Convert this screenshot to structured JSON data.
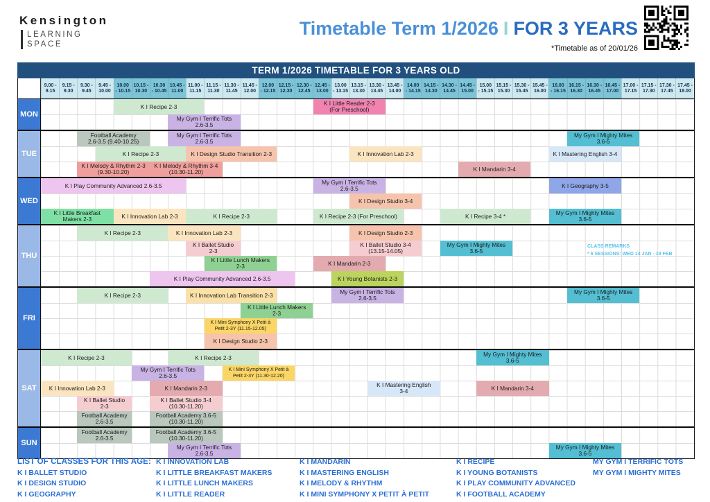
{
  "logo": {
    "line1": "Kensington",
    "line2": "LEARNING",
    "line3": "SPACE"
  },
  "header": {
    "title_main": "Timetable Term 1/2026",
    "title_sep": "I",
    "title_right": "FOR 3 YEARS",
    "subtitle": "*Timetable as of 20/01/26"
  },
  "banner": {
    "text": "TERM 1/2026 TIMETABLE FOR 3 YEARS OLD"
  },
  "icons": {
    "qr_code": "qr-code"
  },
  "colors": {
    "banner_bg": "#21507e",
    "day_medium": "#3c79d2",
    "day_light": "#9bb9e6",
    "time_light": "#cee8f0",
    "time_dark": "#7cc4d6",
    "remark_text": "#58c4ef",
    "footer_text": "#2b6fd4",
    "title_blue": "#4a90d8",
    "title_dark_blue": "#2a6cc0",
    "classes": {
      "recipe": "#cfe9d0",
      "terrific_tots": "#c9b2e4",
      "little_reader": "#f183b1",
      "football": "#b9c7bd",
      "melody": "#ef9f9c",
      "design_studio": "#f6c4ad",
      "innovation_lab": "#fbe5c0",
      "innovation_transition": "#fbe1a8",
      "mastering_english": "#d6e7f8",
      "mighty_mites": "#54bed2",
      "mandarin": "#e3abaf",
      "play_community": "#eec5ee",
      "breakfast_makers": "#7fe0a5",
      "lunch_makers": "#8fd193",
      "ballet": "#f5cdd0",
      "young_botanists": "#bcd45e",
      "mini_symphony": "#fbd666",
      "geography": "#8fa6e9"
    }
  },
  "time_columns": [
    [
      "9.00 -",
      "9.15"
    ],
    [
      "9.15 -",
      "9.30"
    ],
    [
      "9.30 -",
      "9.45"
    ],
    [
      "9.45 -",
      "10.00"
    ],
    [
      "10.00",
      "- 10.15"
    ],
    [
      "10.15 -",
      "10.30"
    ],
    [
      "10.30",
      "- 10.45"
    ],
    [
      "10.45 -",
      "11.00"
    ],
    [
      "11.00 -",
      "11.15"
    ],
    [
      "11.15 -",
      "11.30"
    ],
    [
      "11.30 -",
      "11.45"
    ],
    [
      "11.45 -",
      "12.00"
    ],
    [
      "12.00",
      "- 12.15"
    ],
    [
      "12.15 -",
      "12.30"
    ],
    [
      "12.30 -",
      "12.45"
    ],
    [
      "12.45 -",
      "13.00"
    ],
    [
      "13.00",
      "- 13.15"
    ],
    [
      "13.15 -",
      "13.30"
    ],
    [
      "13.30 -",
      "13.45"
    ],
    [
      "13.45 -",
      "14.00"
    ],
    [
      "14.00",
      "- 14.15"
    ],
    [
      "14.15 -",
      "14.30"
    ],
    [
      "14.30 -",
      "14.45"
    ],
    [
      "14.45 -",
      "15.00"
    ],
    [
      "15.00",
      "- 15.15"
    ],
    [
      "15.15 -",
      "15.30"
    ],
    [
      "15.30 -",
      "15.45"
    ],
    [
      "15.45 -",
      "16.00"
    ],
    [
      "16.00",
      "- 16.15"
    ],
    [
      "16.15 -",
      "16.30"
    ],
    [
      "16.30 -",
      "16.45"
    ],
    [
      "16.45 -",
      "17.00"
    ],
    [
      "17.00 -",
      "17.15"
    ],
    [
      "17.15 -",
      "17.30"
    ],
    [
      "17.30 -",
      "17.45"
    ],
    [
      "17.45 -",
      "18.00"
    ]
  ],
  "days": [
    {
      "label": "MON",
      "shade": "medium",
      "subrows": 2,
      "blocks": [
        {
          "row": 0,
          "col": 4,
          "span": 5,
          "color": "recipe",
          "lines": [
            "K I Recipe 2-3"
          ]
        },
        {
          "row": 0,
          "col": 15,
          "span": 4,
          "color": "little_reader",
          "lines": [
            "K I Little Reader 2-3",
            "(For Preschool)"
          ]
        },
        {
          "row": 1,
          "col": 7,
          "span": 4,
          "color": "terrific_tots",
          "lines": [
            "My Gym I Terrific Tots",
            "2.6-3.5"
          ]
        }
      ]
    },
    {
      "label": "TUE",
      "shade": "light",
      "subrows": 3,
      "blocks": [
        {
          "row": 0,
          "col": 2,
          "span": 4,
          "color": "football",
          "lines": [
            "Football Academy",
            "2.6-3.5 (9.40-10.25)"
          ]
        },
        {
          "row": 0,
          "col": 7,
          "span": 4,
          "color": "terrific_tots",
          "lines": [
            "My Gym I Terrific Tots",
            "2.6-3.5"
          ]
        },
        {
          "row": 0,
          "col": 29,
          "span": 4,
          "color": "mighty_mites",
          "lines": [
            "My Gym I Mighty Mites",
            "3.6-5"
          ]
        },
        {
          "row": 1,
          "col": 3,
          "span": 5,
          "color": "recipe",
          "lines": [
            "K I Recipe 2-3"
          ]
        },
        {
          "row": 1,
          "col": 8,
          "span": 5,
          "color": "design_studio",
          "lines": [
            "K I Design Studio Transition 2-3"
          ]
        },
        {
          "row": 1,
          "col": 17,
          "span": 4,
          "color": "innovation_lab",
          "lines": [
            "K I Innovation Lab 2-3"
          ]
        },
        {
          "row": 1,
          "col": 28,
          "span": 4,
          "color": "mastering_english",
          "lines": [
            "K I Mastering English  3-4"
          ]
        },
        {
          "row": 2,
          "col": 2,
          "span": 4,
          "color": "melody",
          "lines": [
            "K I Melody & Rhythm 2-3",
            "(9.30-10.20)"
          ]
        },
        {
          "row": 2,
          "col": 6,
          "span": 4,
          "color": "melody",
          "lines": [
            "K I Melody & Rhythm 3-4",
            "(10.30-11.20)"
          ]
        },
        {
          "row": 2,
          "col": 23,
          "span": 4,
          "color": "mandarin",
          "lines": [
            "K I Mandarin 3-4"
          ]
        }
      ]
    },
    {
      "label": "WED",
      "shade": "medium",
      "subrows": 3,
      "blocks": [
        {
          "row": 0,
          "col": 0,
          "span": 8,
          "color": "play_community",
          "lines": [
            "K I Play Community Advanced 2.6-3.5"
          ]
        },
        {
          "row": 0,
          "col": 15,
          "span": 4,
          "color": "terrific_tots",
          "lines": [
            "My Gym I Terrific Tots",
            "2.6-3.5"
          ]
        },
        {
          "row": 0,
          "col": 28,
          "span": 4,
          "color": "geography",
          "lines": [
            "K I Geography 3-5"
          ]
        },
        {
          "row": 1,
          "col": 17,
          "span": 4,
          "color": "design_studio",
          "lines": [
            "K I Design Studio 3-4"
          ]
        },
        {
          "row": 2,
          "col": 0,
          "span": 4,
          "color": "breakfast_makers",
          "lines": [
            "K I Little Breakfast",
            "Makers 2-3"
          ]
        },
        {
          "row": 2,
          "col": 4,
          "span": 4,
          "color": "innovation_lab",
          "lines": [
            "K I Innovation Lab 2-3"
          ]
        },
        {
          "row": 2,
          "col": 8,
          "span": 5,
          "color": "recipe",
          "lines": [
            "K I Recipe 2-3"
          ]
        },
        {
          "row": 2,
          "col": 15,
          "span": 5,
          "color": "recipe",
          "lines": [
            "K I Recipe 2-3 (For Preschool)"
          ]
        },
        {
          "row": 2,
          "col": 22,
          "span": 5,
          "color": "recipe",
          "lines": [
            "K I Recipe 3-4 *"
          ]
        },
        {
          "row": 2,
          "col": 28,
          "span": 4,
          "color": "mighty_mites",
          "lines": [
            "My Gym I Mighty Mites",
            "3.6-5"
          ]
        }
      ]
    },
    {
      "label": "THU",
      "shade": "light",
      "subrows": 4,
      "remark": {
        "col": 30,
        "row": 1,
        "lines": [
          "CLASS  REMARKS",
          "* 6 SESSIONS: WED 14 JAN - 18 FEB"
        ]
      },
      "blocks": [
        {
          "row": 0,
          "col": 2,
          "span": 5,
          "color": "recipe",
          "lines": [
            "K I Recipe 2-3"
          ]
        },
        {
          "row": 0,
          "col": 7,
          "span": 4,
          "color": "innovation_lab",
          "lines": [
            "K I Innovation Lab 2-3"
          ]
        },
        {
          "row": 0,
          "col": 17,
          "span": 4,
          "color": "design_studio",
          "lines": [
            "K I Design Studio 2-3"
          ]
        },
        {
          "row": 1,
          "col": 8,
          "span": 3,
          "color": "ballet",
          "lines": [
            "K I Ballet Studio",
            "2-3"
          ]
        },
        {
          "row": 1,
          "col": 17,
          "span": 4,
          "color": "ballet",
          "lines": [
            "K I Ballet Studio 3-4",
            "(13.15-14.05)"
          ]
        },
        {
          "row": 1,
          "col": 22,
          "span": 4,
          "color": "mighty_mites",
          "lines": [
            "My Gym I Mighty Mites",
            "3.6-5"
          ]
        },
        {
          "row": 2,
          "col": 9,
          "span": 4,
          "color": "lunch_makers",
          "lines": [
            "K I Little Lunch Makers",
            "2-3"
          ]
        },
        {
          "row": 2,
          "col": 15,
          "span": 4,
          "color": "mandarin",
          "lines": [
            "K I Mandarin 2-3"
          ]
        },
        {
          "row": 3,
          "col": 6,
          "span": 8,
          "color": "play_community",
          "lines": [
            "K I Play Community Advanced 2.6-3.5"
          ]
        },
        {
          "row": 3,
          "col": 16,
          "span": 4,
          "color": "young_botanists",
          "lines": [
            "K I Young Botanists 2-3"
          ]
        }
      ]
    },
    {
      "label": "FRI",
      "shade": "medium",
      "subrows": 4,
      "blocks": [
        {
          "row": 0,
          "col": 2,
          "span": 5,
          "color": "recipe",
          "lines": [
            "K I Recipe 2-3"
          ]
        },
        {
          "row": 0,
          "col": 8,
          "span": 5,
          "color": "innovation_transition",
          "lines": [
            "K I Innovation Lab Transition 2-3"
          ]
        },
        {
          "row": 0,
          "col": 16,
          "span": 4,
          "color": "terrific_tots",
          "lines": [
            "My Gym I Terrific Tots",
            "2.6-3.5"
          ]
        },
        {
          "row": 0,
          "col": 29,
          "span": 4,
          "color": "mighty_mites",
          "lines": [
            "My Gym I Mighty Mites",
            "3.6-5"
          ]
        },
        {
          "row": 1,
          "col": 11,
          "span": 4,
          "color": "lunch_makers",
          "lines": [
            "K I Little Lunch Makers",
            "2-3"
          ]
        },
        {
          "row": 2,
          "col": 9,
          "span": 4,
          "color": "mini_symphony",
          "lines": [
            "K I Mini Symphony X Petit à",
            "Petit  2-3Y (11.15-12.05)"
          ]
        },
        {
          "row": 3,
          "col": 9,
          "span": 4,
          "color": "design_studio",
          "lines": [
            "K I Design Studio 2-3"
          ]
        }
      ]
    },
    {
      "label": "SAT",
      "shade": "light",
      "subrows": 5,
      "blocks": [
        {
          "row": 0,
          "col": 0,
          "span": 5,
          "color": "recipe",
          "lines": [
            "K I Recipe 2-3"
          ]
        },
        {
          "row": 0,
          "col": 7,
          "span": 5,
          "color": "recipe",
          "lines": [
            "K I Recipe 2-3"
          ]
        },
        {
          "row": 0,
          "col": 24,
          "span": 4,
          "color": "mighty_mites",
          "lines": [
            "My Gym I Mighty Mites",
            "3.6-5"
          ]
        },
        {
          "row": 1,
          "col": 5,
          "span": 4,
          "color": "terrific_tots",
          "lines": [
            "My Gym I Terrific Tots",
            "2.6-3.5"
          ]
        },
        {
          "row": 1,
          "col": 10,
          "span": 4,
          "color": "mini_symphony",
          "lines": [
            "K I Mini Symphony X Petit à",
            "Petit 2-3Y (11.30-12.20)"
          ]
        },
        {
          "row": 2,
          "col": 0,
          "span": 4,
          "color": "innovation_lab",
          "lines": [
            "K I Innovation Lab 2-3"
          ]
        },
        {
          "row": 2,
          "col": 6,
          "span": 4,
          "color": "mandarin",
          "lines": [
            "K I Mandarin 2-3"
          ]
        },
        {
          "row": 2,
          "col": 18,
          "span": 4,
          "color": "mastering_english",
          "lines": [
            "K I Mastering English",
            "3-4"
          ]
        },
        {
          "row": 2,
          "col": 24,
          "span": 4,
          "color": "mandarin",
          "lines": [
            "K I Mandarin 3-4"
          ]
        },
        {
          "row": 3,
          "col": 2,
          "span": 3,
          "color": "ballet",
          "lines": [
            "K I Ballet Studio",
            "2-3"
          ]
        },
        {
          "row": 3,
          "col": 6,
          "span": 4,
          "color": "ballet",
          "lines": [
            "K I Ballet Studio 3-4",
            "(10.30-11.20)"
          ]
        },
        {
          "row": 4,
          "col": 2,
          "span": 3,
          "color": "football",
          "lines": [
            "Football Academy",
            "2.6-3.5"
          ]
        },
        {
          "row": 4,
          "col": 6,
          "span": 4,
          "color": "football",
          "lines": [
            "Football Academy 3.6-5",
            "(10.30-11.20)"
          ]
        }
      ]
    },
    {
      "label": "SUN",
      "shade": "medium",
      "subrows": 2,
      "blocks": [
        {
          "row": 0,
          "col": 2,
          "span": 3,
          "color": "football",
          "lines": [
            "Football Academy",
            "2.6-3.5"
          ]
        },
        {
          "row": 0,
          "col": 6,
          "span": 4,
          "color": "football",
          "lines": [
            "Football Academy 3.6-5",
            "(10.30-11.20)"
          ]
        },
        {
          "row": 1,
          "col": 7,
          "span": 4,
          "color": "terrific_tots",
          "lines": [
            "My Gym I Terrific Tots",
            "2.6-3.5"
          ]
        },
        {
          "row": 1,
          "col": 28,
          "span": 4,
          "color": "mighty_mites",
          "lines": [
            "My Gym I Mighty Mites",
            "3.6-5"
          ]
        }
      ]
    }
  ],
  "footer": {
    "heading": "LIST OF CLASSES FOR THIS AGE:",
    "columns": [
      [
        "K I BALLET STUDIO",
        "K I DESIGN STUDIO",
        "K I GEOGRAPHY"
      ],
      [
        "K I INNOVATION LAB",
        "K I LITTLE BREAKFAST MAKERS",
        "K I LITTLE LUNCH MAKERS",
        "K I LITTLE READER"
      ],
      [
        "K I MANDARIN",
        "K I MASTERING ENGLISH",
        "K I MELODY & RHYTHM",
        "K I MINI SYMPHONY X PETIT À PETIT"
      ],
      [
        "K I RECIPE",
        "K I YOUNG BOTANISTS",
        "K I PLAY COMMUNITY ADVANCED",
        "K I FOOTBALL ACADEMY"
      ],
      [
        "MY GYM I TERRIFIC TOTS",
        "MY GYM I MIGHTY MITES"
      ]
    ]
  }
}
